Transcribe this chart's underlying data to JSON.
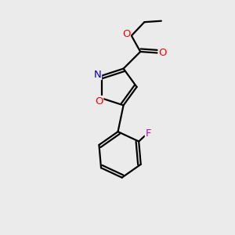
{
  "bg_color": "#ebebeb",
  "bond_color": "#000000",
  "bond_width": 1.6,
  "atom_colors": {
    "O": "#ff0000",
    "N": "#0000cc",
    "F": "#cc00cc"
  },
  "font_size": 9.5
}
